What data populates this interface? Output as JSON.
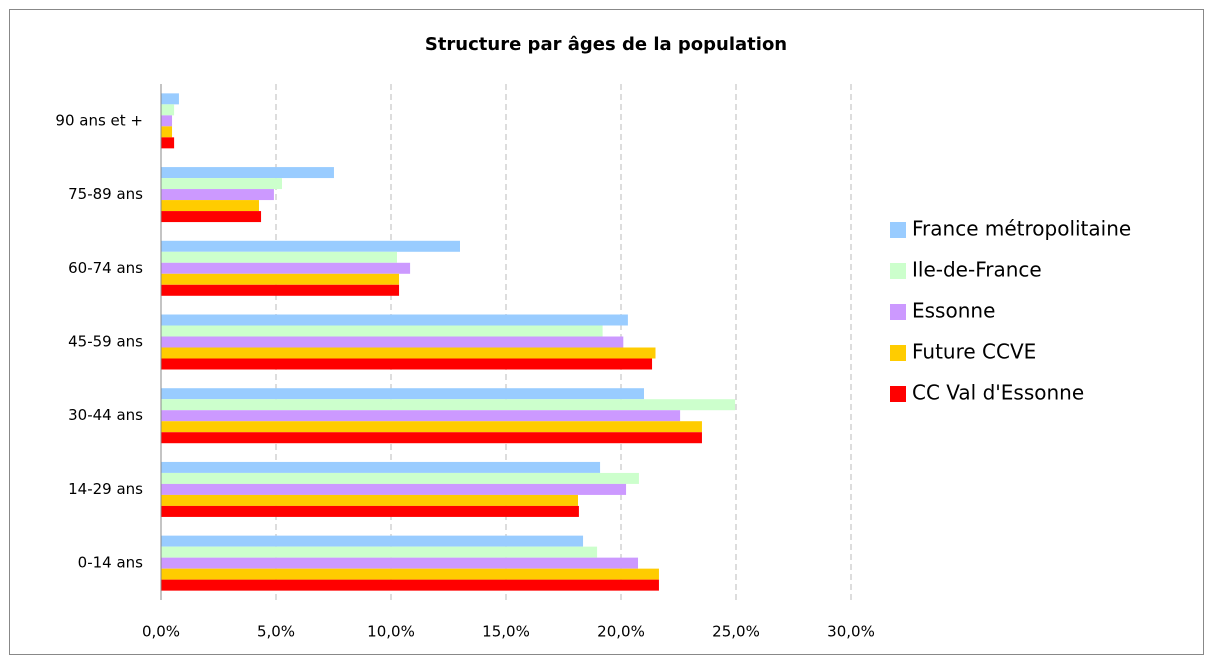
{
  "chart_data": {
    "type": "hbar",
    "title": "Structure par âges de la population",
    "categories": [
      "0-14 ans",
      "14-29 ans",
      "30-44 ans",
      "45-59 ans",
      "60-74 ans",
      "75-89 ans",
      "90 ans et +"
    ],
    "series": [
      {
        "name": "France métropolitaine",
        "color": "#99ccff",
        "values": [
          18.35,
          19.09,
          21.0,
          20.3,
          13.0,
          7.52,
          0.78
        ]
      },
      {
        "name": "Ile-de-France",
        "color": "#ccffcc",
        "values": [
          18.96,
          20.78,
          24.96,
          19.2,
          10.26,
          5.26,
          0.57
        ]
      },
      {
        "name": "Essonne",
        "color": "#cc99ff",
        "values": [
          20.74,
          20.22,
          22.57,
          20.1,
          10.83,
          4.91,
          0.48
        ]
      },
      {
        "name": "Future CCVE",
        "color": "#ffcc00",
        "values": [
          21.65,
          18.13,
          23.52,
          21.5,
          10.35,
          4.26,
          0.48
        ]
      },
      {
        "name": "CC Val d'Essonne",
        "color": "#ff0000",
        "values": [
          21.65,
          18.17,
          23.52,
          21.35,
          10.35,
          4.35,
          0.57
        ]
      }
    ],
    "xlim": [
      0,
      30
    ],
    "xticks": [
      {
        "value": 0,
        "label": "0,0%"
      },
      {
        "value": 5,
        "label": "5,0%"
      },
      {
        "value": 10,
        "label": "10,0%"
      },
      {
        "value": 15,
        "label": "15,0%"
      },
      {
        "value": 20,
        "label": "20,0%"
      },
      {
        "value": 25,
        "label": "25,0%"
      },
      {
        "value": 30,
        "label": "30,0%"
      }
    ],
    "grid": true,
    "legend": "right"
  }
}
